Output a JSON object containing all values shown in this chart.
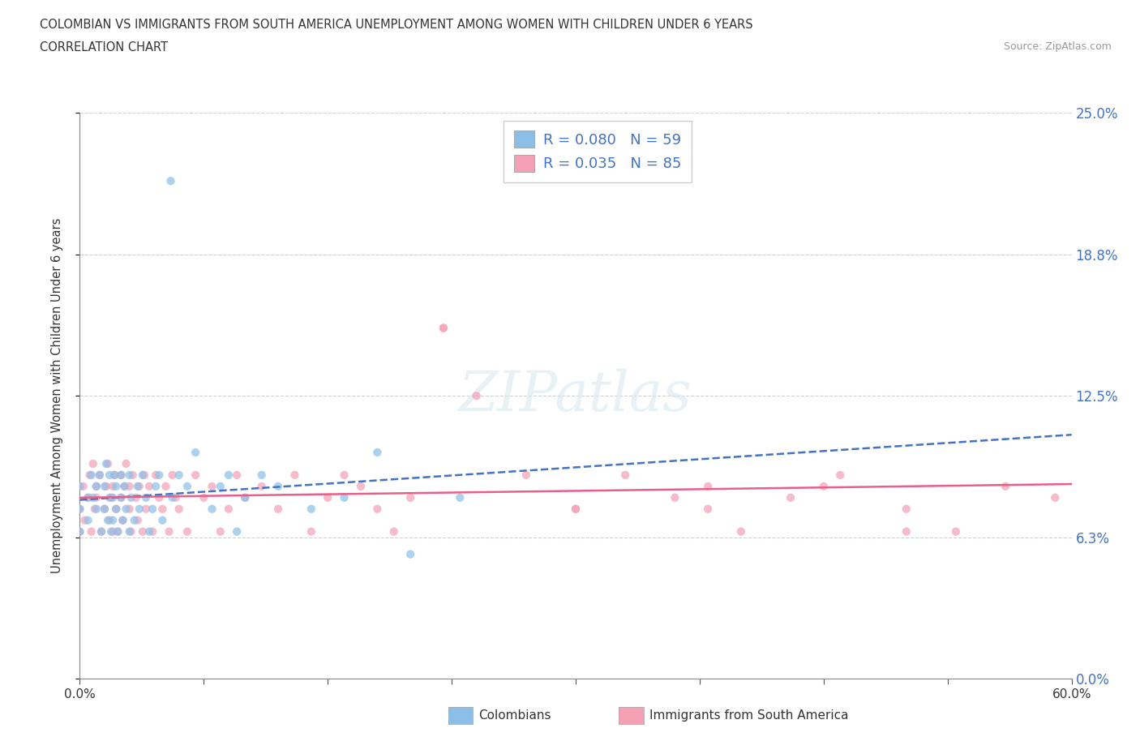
{
  "title_line1": "COLOMBIAN VS IMMIGRANTS FROM SOUTH AMERICA UNEMPLOYMENT AMONG WOMEN WITH CHILDREN UNDER 6 YEARS",
  "title_line2": "CORRELATION CHART",
  "source_text": "Source: ZipAtlas.com",
  "ylabel": "Unemployment Among Women with Children Under 6 years",
  "xmin": 0.0,
  "xmax": 0.6,
  "ymin": 0.0,
  "ymax": 0.25,
  "ytick_vals": [
    0.0,
    0.0625,
    0.125,
    0.1875,
    0.25
  ],
  "ytick_labels": [
    "0.0%",
    "6.3%",
    "12.5%",
    "18.8%",
    "25.0%"
  ],
  "xtick_vals": [
    0.0,
    0.075,
    0.15,
    0.225,
    0.3,
    0.375,
    0.45,
    0.525,
    0.6
  ],
  "xtick_labels": [
    "0.0%",
    "",
    "",
    "",
    "",
    "",
    "",
    "",
    "60.0%"
  ],
  "grid_color": "#d0d0d0",
  "background_color": "#ffffff",
  "watermark_text": "ZIPatlas",
  "legend_label1": "R = 0.080   N = 59",
  "legend_label2": "R = 0.035   N = 85",
  "color_colombians": "#8bbfe8",
  "color_immigrants": "#f4a0b5",
  "color_line_blue": "#4472c4",
  "color_line_pink": "#e8608a",
  "scatter_alpha": 0.7,
  "dot_size": 55,
  "trend_intercept_blue": 0.079,
  "trend_slope_blue": 0.048,
  "trend_intercept_pink": 0.08,
  "trend_slope_pink": 0.01,
  "colombians_x": [
    0.0,
    0.0,
    0.0,
    0.005,
    0.005,
    0.007,
    0.008,
    0.01,
    0.01,
    0.012,
    0.013,
    0.015,
    0.015,
    0.016,
    0.017,
    0.018,
    0.018,
    0.019,
    0.02,
    0.02,
    0.021,
    0.022,
    0.022,
    0.023,
    0.025,
    0.025,
    0.026,
    0.027,
    0.028,
    0.03,
    0.03,
    0.031,
    0.033,
    0.035,
    0.036,
    0.038,
    0.04,
    0.042,
    0.044,
    0.046,
    0.048,
    0.05,
    0.055,
    0.056,
    0.06,
    0.065,
    0.07,
    0.08,
    0.085,
    0.09,
    0.095,
    0.1,
    0.11,
    0.12,
    0.14,
    0.16,
    0.18,
    0.2,
    0.23
  ],
  "colombians_y": [
    0.065,
    0.075,
    0.085,
    0.07,
    0.08,
    0.09,
    0.08,
    0.075,
    0.085,
    0.09,
    0.065,
    0.075,
    0.085,
    0.095,
    0.07,
    0.08,
    0.09,
    0.065,
    0.07,
    0.08,
    0.09,
    0.085,
    0.075,
    0.065,
    0.08,
    0.09,
    0.07,
    0.085,
    0.075,
    0.065,
    0.09,
    0.08,
    0.07,
    0.085,
    0.075,
    0.09,
    0.08,
    0.065,
    0.075,
    0.085,
    0.09,
    0.07,
    0.22,
    0.08,
    0.09,
    0.085,
    0.1,
    0.075,
    0.085,
    0.09,
    0.065,
    0.08,
    0.09,
    0.085,
    0.075,
    0.08,
    0.1,
    0.055,
    0.08
  ],
  "immigrants_x": [
    0.0,
    0.0,
    0.002,
    0.003,
    0.005,
    0.006,
    0.007,
    0.008,
    0.009,
    0.01,
    0.01,
    0.012,
    0.013,
    0.015,
    0.016,
    0.017,
    0.018,
    0.019,
    0.02,
    0.02,
    0.021,
    0.022,
    0.023,
    0.025,
    0.025,
    0.026,
    0.027,
    0.028,
    0.03,
    0.03,
    0.031,
    0.032,
    0.034,
    0.035,
    0.036,
    0.038,
    0.039,
    0.04,
    0.042,
    0.044,
    0.046,
    0.048,
    0.05,
    0.052,
    0.054,
    0.056,
    0.058,
    0.06,
    0.065,
    0.07,
    0.075,
    0.08,
    0.085,
    0.09,
    0.095,
    0.1,
    0.11,
    0.12,
    0.13,
    0.14,
    0.15,
    0.16,
    0.17,
    0.18,
    0.19,
    0.2,
    0.22,
    0.24,
    0.27,
    0.3,
    0.33,
    0.36,
    0.4,
    0.43,
    0.46,
    0.5,
    0.53,
    0.56,
    0.59,
    0.22,
    0.3,
    0.38,
    0.45,
    0.5,
    0.38
  ],
  "immigrants_y": [
    0.065,
    0.075,
    0.085,
    0.07,
    0.08,
    0.09,
    0.065,
    0.095,
    0.075,
    0.08,
    0.085,
    0.09,
    0.065,
    0.075,
    0.085,
    0.095,
    0.07,
    0.08,
    0.065,
    0.085,
    0.09,
    0.075,
    0.065,
    0.08,
    0.09,
    0.07,
    0.085,
    0.095,
    0.075,
    0.085,
    0.065,
    0.09,
    0.08,
    0.07,
    0.085,
    0.065,
    0.09,
    0.075,
    0.085,
    0.065,
    0.09,
    0.08,
    0.075,
    0.085,
    0.065,
    0.09,
    0.08,
    0.075,
    0.065,
    0.09,
    0.08,
    0.085,
    0.065,
    0.075,
    0.09,
    0.08,
    0.085,
    0.075,
    0.09,
    0.065,
    0.08,
    0.09,
    0.085,
    0.075,
    0.065,
    0.08,
    0.155,
    0.125,
    0.09,
    0.075,
    0.09,
    0.08,
    0.065,
    0.08,
    0.09,
    0.075,
    0.065,
    0.085,
    0.08,
    0.155,
    0.075,
    0.085,
    0.085,
    0.065,
    0.075
  ]
}
